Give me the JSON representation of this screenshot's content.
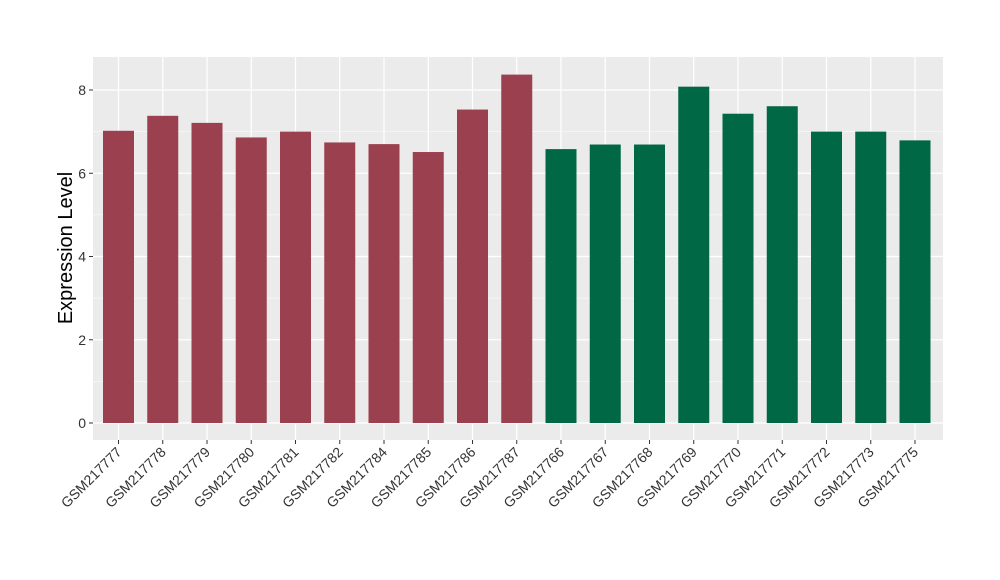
{
  "chart_data": {
    "type": "bar",
    "title": "",
    "xlabel": "",
    "ylabel": "Expression Level",
    "ylim": [
      -0.4,
      8.8
    ],
    "yticks": [
      0,
      2,
      4,
      6,
      8
    ],
    "grid": true,
    "legend": "none",
    "categories": [
      "GSM217777",
      "GSM217778",
      "GSM217779",
      "GSM217780",
      "GSM217781",
      "GSM217782",
      "GSM217784",
      "GSM217785",
      "GSM217786",
      "GSM217787",
      "GSM217766",
      "GSM217767",
      "GSM217768",
      "GSM217769",
      "GSM217770",
      "GSM217771",
      "GSM217772",
      "GSM217773",
      "GSM217775"
    ],
    "values": [
      7.02,
      7.38,
      7.21,
      6.86,
      7.0,
      6.74,
      6.7,
      6.51,
      7.53,
      8.37,
      6.58,
      6.69,
      6.69,
      8.08,
      7.43,
      7.61,
      7.0,
      7.0,
      6.79
    ],
    "group_colors": [
      "#9b404f",
      "#9b404f",
      "#9b404f",
      "#9b404f",
      "#9b404f",
      "#9b404f",
      "#9b404f",
      "#9b404f",
      "#9b404f",
      "#9b404f",
      "#006845",
      "#006845",
      "#006845",
      "#006845",
      "#006845",
      "#006845",
      "#006845",
      "#006845",
      "#006845"
    ],
    "panel_background": "#ebebeb",
    "grid_color": "#ffffff"
  }
}
